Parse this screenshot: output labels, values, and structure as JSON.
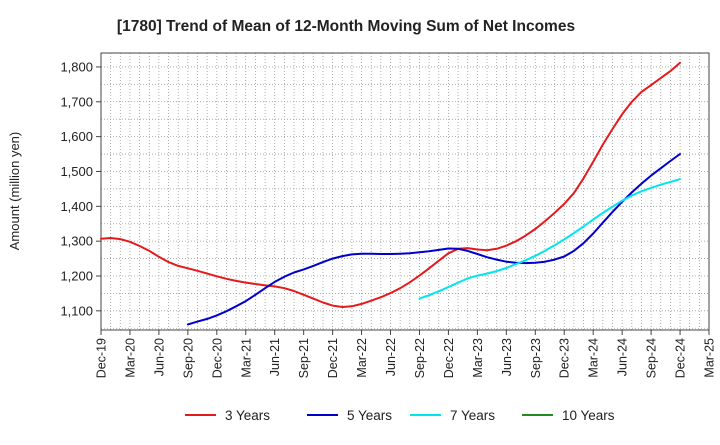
{
  "chart_data": {
    "type": "line",
    "title": "[1780]  Trend of Mean of 12-Month Moving Sum of Net Incomes",
    "xlabel": "",
    "ylabel": "Amount (million yen)",
    "ylim": [
      1045,
      1840
    ],
    "yticks": [
      1100,
      1200,
      1300,
      1400,
      1500,
      1600,
      1700,
      1800
    ],
    "ytick_labels": [
      "1,100",
      "1,200",
      "1,300",
      "1,400",
      "1,500",
      "1,600",
      "1,700",
      "1,800"
    ],
    "x_start": "2019-12",
    "x_end": "2025-03",
    "xtick_labels": [
      "Dec-19",
      "Mar-20",
      "Jun-20",
      "Sep-20",
      "Dec-20",
      "Mar-21",
      "Jun-21",
      "Sep-21",
      "Dec-21",
      "Mar-22",
      "Jun-22",
      "Sep-22",
      "Dec-22",
      "Mar-23",
      "Jun-23",
      "Sep-23",
      "Dec-23",
      "Mar-24",
      "Jun-24",
      "Sep-24",
      "Dec-24",
      "Mar-25"
    ],
    "grid": true,
    "legend_position": "bottom",
    "series": [
      {
        "name": "3 Years",
        "color": "#e41a1c",
        "points": [
          [
            "2019-12",
            1307
          ],
          [
            "2020-01",
            1309
          ],
          [
            "2020-02",
            1306
          ],
          [
            "2020-03",
            1298
          ],
          [
            "2020-04",
            1286
          ],
          [
            "2020-05",
            1272
          ],
          [
            "2020-06",
            1255
          ],
          [
            "2020-07",
            1240
          ],
          [
            "2020-08",
            1229
          ],
          [
            "2020-09",
            1222
          ],
          [
            "2020-10",
            1215
          ],
          [
            "2020-11",
            1207
          ],
          [
            "2020-12",
            1199
          ],
          [
            "2021-01",
            1192
          ],
          [
            "2021-02",
            1186
          ],
          [
            "2021-03",
            1181
          ],
          [
            "2021-04",
            1177
          ],
          [
            "2021-05",
            1173
          ],
          [
            "2021-06",
            1170
          ],
          [
            "2021-07",
            1165
          ],
          [
            "2021-08",
            1157
          ],
          [
            "2021-09",
            1146
          ],
          [
            "2021-10",
            1135
          ],
          [
            "2021-11",
            1124
          ],
          [
            "2021-12",
            1115
          ],
          [
            "2022-01",
            1111
          ],
          [
            "2022-02",
            1113
          ],
          [
            "2022-03",
            1120
          ],
          [
            "2022-04",
            1129
          ],
          [
            "2022-05",
            1139
          ],
          [
            "2022-06",
            1151
          ],
          [
            "2022-07",
            1165
          ],
          [
            "2022-08",
            1182
          ],
          [
            "2022-09",
            1201
          ],
          [
            "2022-10",
            1222
          ],
          [
            "2022-11",
            1244
          ],
          [
            "2022-12",
            1265
          ],
          [
            "2023-01",
            1278
          ],
          [
            "2023-02",
            1280
          ],
          [
            "2023-03",
            1276
          ],
          [
            "2023-04",
            1274
          ],
          [
            "2023-05",
            1278
          ],
          [
            "2023-06",
            1287
          ],
          [
            "2023-07",
            1300
          ],
          [
            "2023-08",
            1316
          ],
          [
            "2023-09",
            1335
          ],
          [
            "2023-10",
            1357
          ],
          [
            "2023-11",
            1381
          ],
          [
            "2023-12",
            1407
          ],
          [
            "2024-01",
            1438
          ],
          [
            "2024-02",
            1480
          ],
          [
            "2024-03",
            1528
          ],
          [
            "2024-04",
            1577
          ],
          [
            "2024-05",
            1622
          ],
          [
            "2024-06",
            1664
          ],
          [
            "2024-07",
            1700
          ],
          [
            "2024-08",
            1728
          ],
          [
            "2024-09",
            1748
          ],
          [
            "2024-10",
            1768
          ],
          [
            "2024-11",
            1788
          ],
          [
            "2024-12",
            1812
          ]
        ]
      },
      {
        "name": "5 Years",
        "color": "#0000cc",
        "points": [
          [
            "2020-09",
            1061
          ],
          [
            "2020-10",
            1069
          ],
          [
            "2020-11",
            1077
          ],
          [
            "2020-12",
            1087
          ],
          [
            "2021-01",
            1099
          ],
          [
            "2021-02",
            1113
          ],
          [
            "2021-03",
            1128
          ],
          [
            "2021-04",
            1146
          ],
          [
            "2021-05",
            1165
          ],
          [
            "2021-06",
            1183
          ],
          [
            "2021-07",
            1198
          ],
          [
            "2021-08",
            1210
          ],
          [
            "2021-09",
            1219
          ],
          [
            "2021-10",
            1229
          ],
          [
            "2021-11",
            1240
          ],
          [
            "2021-12",
            1250
          ],
          [
            "2022-01",
            1257
          ],
          [
            "2022-02",
            1262
          ],
          [
            "2022-03",
            1264
          ],
          [
            "2022-04",
            1264
          ],
          [
            "2022-05",
            1263
          ],
          [
            "2022-06",
            1263
          ],
          [
            "2022-07",
            1264
          ],
          [
            "2022-08",
            1265
          ],
          [
            "2022-09",
            1268
          ],
          [
            "2022-10",
            1271
          ],
          [
            "2022-11",
            1275
          ],
          [
            "2022-12",
            1279
          ],
          [
            "2023-01",
            1278
          ],
          [
            "2023-02",
            1272
          ],
          [
            "2023-03",
            1263
          ],
          [
            "2023-04",
            1254
          ],
          [
            "2023-05",
            1247
          ],
          [
            "2023-06",
            1241
          ],
          [
            "2023-07",
            1238
          ],
          [
            "2023-08",
            1237
          ],
          [
            "2023-09",
            1238
          ],
          [
            "2023-10",
            1241
          ],
          [
            "2023-11",
            1247
          ],
          [
            "2023-12",
            1256
          ],
          [
            "2024-01",
            1272
          ],
          [
            "2024-02",
            1294
          ],
          [
            "2024-03",
            1322
          ],
          [
            "2024-04",
            1353
          ],
          [
            "2024-05",
            1384
          ],
          [
            "2024-06",
            1413
          ],
          [
            "2024-07",
            1440
          ],
          [
            "2024-08",
            1465
          ],
          [
            "2024-09",
            1488
          ],
          [
            "2024-10",
            1509
          ],
          [
            "2024-11",
            1530
          ],
          [
            "2024-12",
            1550
          ]
        ]
      },
      {
        "name": "7 Years",
        "color": "#00e5ee",
        "points": [
          [
            "2022-09",
            1135
          ],
          [
            "2022-10",
            1145
          ],
          [
            "2022-11",
            1156
          ],
          [
            "2022-12",
            1168
          ],
          [
            "2023-01",
            1181
          ],
          [
            "2023-02",
            1193
          ],
          [
            "2023-03",
            1201
          ],
          [
            "2023-04",
            1207
          ],
          [
            "2023-05",
            1214
          ],
          [
            "2023-06",
            1223
          ],
          [
            "2023-07",
            1234
          ],
          [
            "2023-08",
            1245
          ],
          [
            "2023-09",
            1258
          ],
          [
            "2023-10",
            1272
          ],
          [
            "2023-11",
            1288
          ],
          [
            "2023-12",
            1305
          ],
          [
            "2024-01",
            1323
          ],
          [
            "2024-02",
            1342
          ],
          [
            "2024-03",
            1362
          ],
          [
            "2024-04",
            1381
          ],
          [
            "2024-05",
            1399
          ],
          [
            "2024-06",
            1416
          ],
          [
            "2024-07",
            1431
          ],
          [
            "2024-08",
            1443
          ],
          [
            "2024-09",
            1453
          ],
          [
            "2024-10",
            1462
          ],
          [
            "2024-11",
            1470
          ],
          [
            "2024-12",
            1478
          ]
        ]
      },
      {
        "name": "10 Years",
        "color": "#228b22",
        "points": []
      }
    ]
  }
}
